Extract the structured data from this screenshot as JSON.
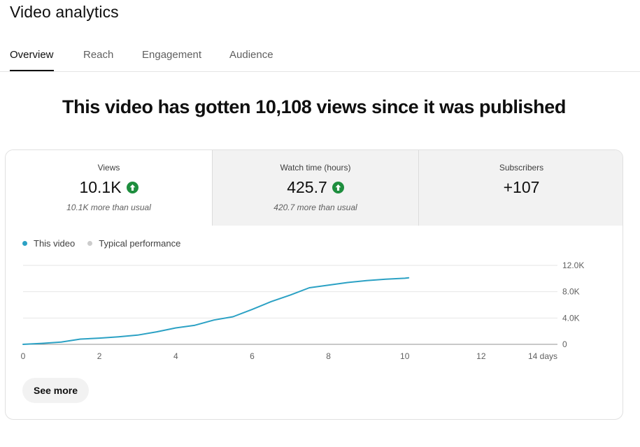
{
  "page": {
    "title": "Video analytics"
  },
  "tabs": [
    {
      "label": "Overview",
      "active": true
    },
    {
      "label": "Reach",
      "active": false
    },
    {
      "label": "Engagement",
      "active": false
    },
    {
      "label": "Audience",
      "active": false
    }
  ],
  "headline": "This video has gotten 10,108 views since it was published",
  "metrics": [
    {
      "label": "Views",
      "value": "10.1K",
      "trend": "up",
      "note": "10.1K more than usual"
    },
    {
      "label": "Watch time (hours)",
      "value": "425.7",
      "trend": "up",
      "note": "420.7 more than usual"
    },
    {
      "label": "Subscribers",
      "value": "+107",
      "trend": "",
      "note": ""
    }
  ],
  "legend": [
    {
      "label": "This video",
      "color": "#2ba1c4"
    },
    {
      "label": "Typical performance",
      "color": "#cccccc"
    }
  ],
  "chart_data": {
    "type": "line",
    "x_tick_labels": [
      "0",
      "2",
      "4",
      "6",
      "8",
      "10",
      "12",
      "14 days"
    ],
    "x_ticks": [
      0,
      2,
      4,
      6,
      8,
      10,
      12,
      14
    ],
    "y_tick_labels": [
      "0",
      "4.0K",
      "8.0K",
      "12.0K"
    ],
    "y_ticks": [
      0,
      4000,
      8000,
      12000
    ],
    "xlim": [
      0,
      14
    ],
    "ylim": [
      0,
      12000
    ],
    "grid": true,
    "series": [
      {
        "name": "This video",
        "color": "#2ba1c4",
        "x": [
          0,
          0.5,
          1,
          1.5,
          2,
          2.5,
          3,
          3.5,
          4,
          4.5,
          5,
          5.5,
          6,
          6.5,
          7,
          7.5,
          8,
          8.5,
          9,
          9.5,
          10,
          10.1
        ],
        "y": [
          0,
          150,
          350,
          800,
          950,
          1150,
          1400,
          1900,
          2500,
          2900,
          3700,
          4200,
          5300,
          6500,
          7500,
          8600,
          9000,
          9400,
          9700,
          9900,
          10050,
          10108
        ]
      }
    ]
  },
  "actions": {
    "see_more": "See more"
  }
}
